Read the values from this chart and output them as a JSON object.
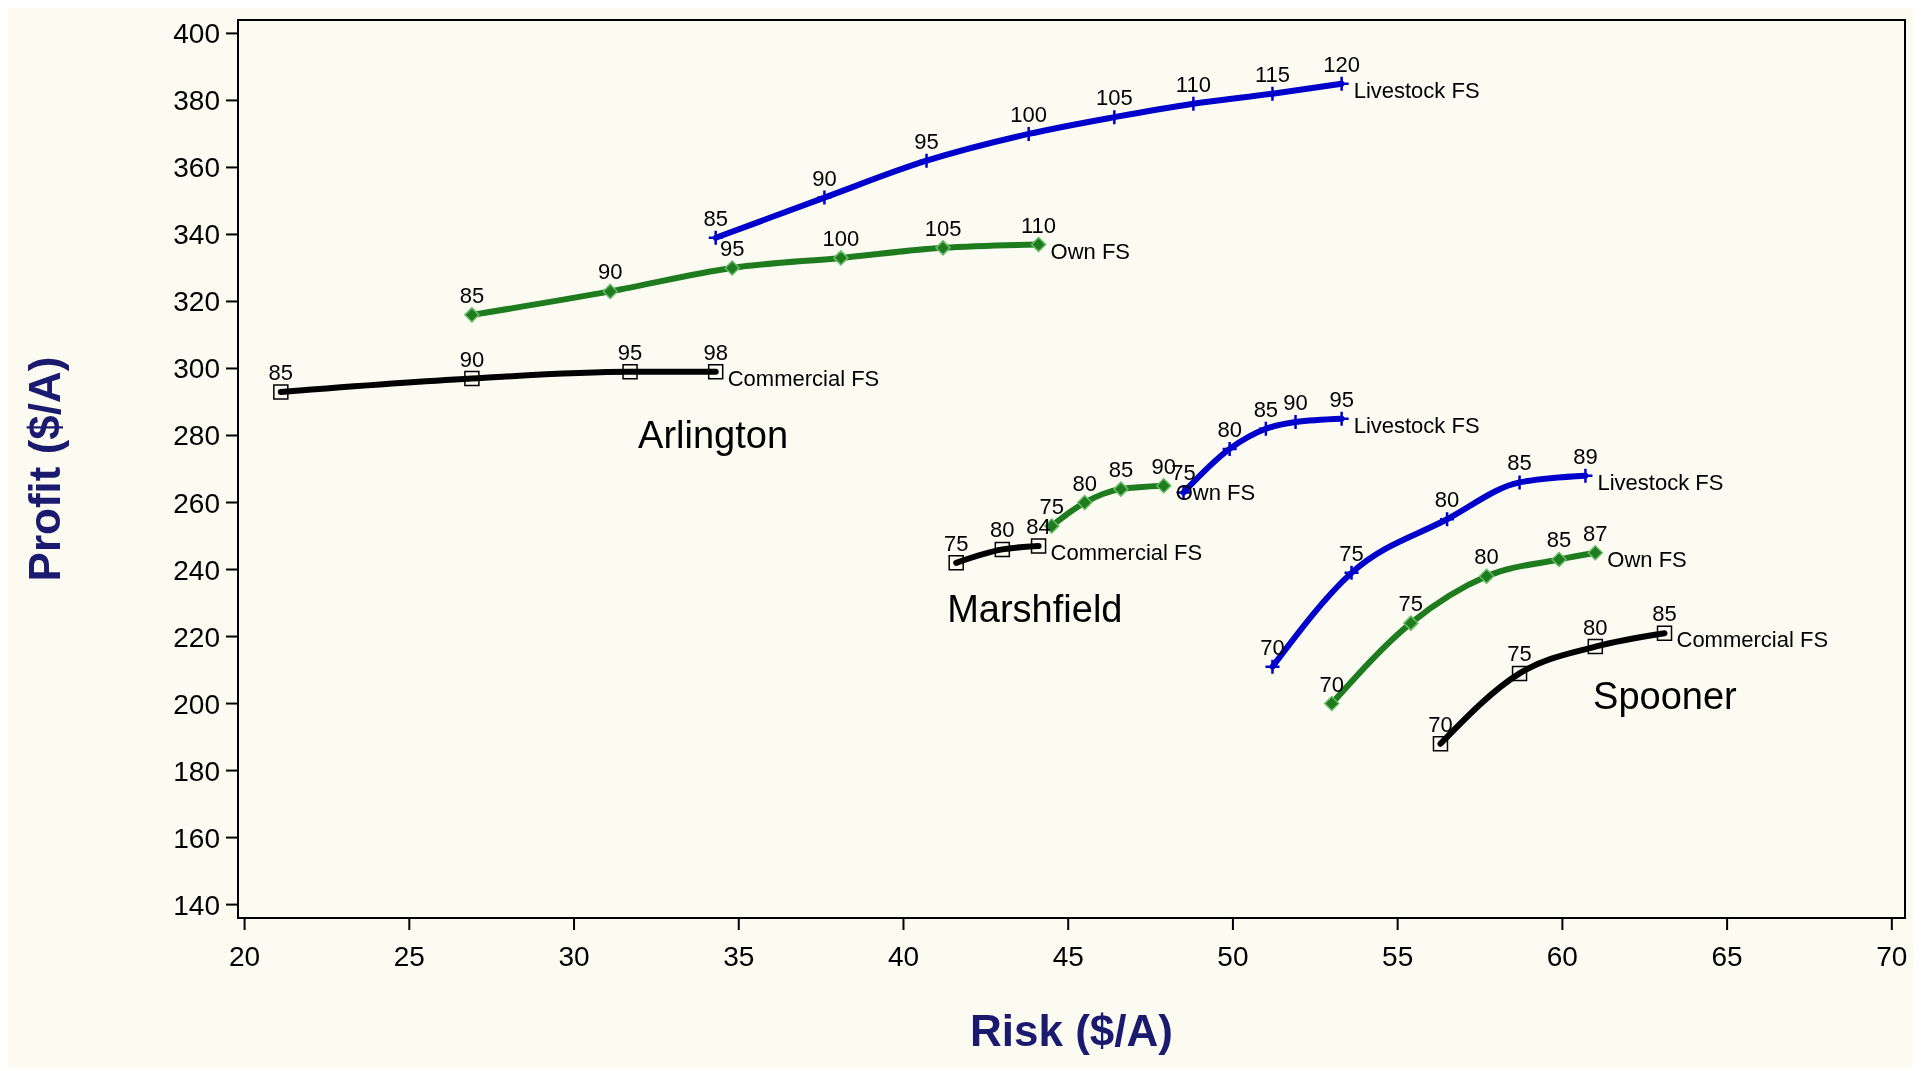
{
  "chart_data": {
    "type": "line",
    "xlabel": "Risk ($/A)",
    "ylabel": "Profit ($/A)",
    "xlim": [
      19.8,
      70.4
    ],
    "ylim": [
      136,
      404
    ],
    "xticks": [
      20,
      25,
      30,
      35,
      40,
      45,
      50,
      55,
      60,
      65,
      70
    ],
    "yticks": [
      140,
      160,
      180,
      200,
      220,
      240,
      260,
      280,
      300,
      320,
      340,
      360,
      380,
      400
    ],
    "line_style": "solid",
    "series": [
      {
        "name": "Livestock FS",
        "color": "#0000cc",
        "marker": "cross",
        "x": [
          34.3,
          37.6,
          40.7,
          43.8,
          46.4,
          48.8,
          51.2,
          53.3
        ],
        "values": [
          339,
          351,
          362,
          370,
          375,
          379,
          382,
          385
        ]
      },
      {
        "name": "Own FS",
        "color": "#1e7b1e",
        "marker": "diamond",
        "x": [
          26.9,
          31.1,
          34.8,
          38.1,
          41.2,
          44.1
        ],
        "values": [
          316,
          323,
          330,
          333,
          336,
          337
        ]
      },
      {
        "name": "Commercial FS",
        "color": "#000000",
        "marker": "square",
        "x": [
          21.1,
          26.9,
          31.7,
          34.3
        ],
        "values": [
          293,
          297,
          299,
          299
        ]
      },
      {
        "name": "Livestock FS",
        "color": "#0000cc",
        "marker": "cross",
        "x": [
          48.5,
          49.9,
          51.0,
          51.9,
          53.3
        ],
        "values": [
          263,
          276,
          282,
          284,
          285
        ]
      },
      {
        "name": "Own FS",
        "color": "#1e7b1e",
        "marker": "diamond",
        "x": [
          44.5,
          45.5,
          46.6,
          47.9
        ],
        "values": [
          253,
          260,
          264,
          265
        ]
      },
      {
        "name": "Commercial FS",
        "color": "#000000",
        "marker": "square",
        "x": [
          41.6,
          43.0,
          44.1
        ],
        "values": [
          242,
          246,
          247
        ]
      },
      {
        "name": "Livestock FS",
        "color": "#0000cc",
        "marker": "cross",
        "x": [
          51.2,
          53.6,
          56.5,
          58.7,
          60.7
        ],
        "values": [
          211,
          239,
          255,
          266,
          268
        ]
      },
      {
        "name": "Own FS",
        "color": "#1e7b1e",
        "marker": "diamond",
        "x": [
          53.0,
          55.4,
          57.7,
          59.9,
          61.0
        ],
        "values": [
          200,
          224,
          238,
          243,
          245
        ]
      },
      {
        "name": "Commercial FS",
        "color": "#000000",
        "marker": "square",
        "x": [
          56.3,
          58.7,
          61.0,
          63.1
        ],
        "values": [
          188,
          209,
          217,
          221
        ]
      }
    ],
    "annotations": [
      "Arlington",
      "Marshfield",
      "Spooner",
      {
        "text": "85",
        "x": 34.3,
        "y": 339
      },
      {
        "text": "90",
        "x": 37.6,
        "y": 351
      },
      {
        "text": "95",
        "x": 40.7,
        "y": 362
      },
      {
        "text": "100",
        "x": 43.8,
        "y": 370
      },
      {
        "text": "105",
        "x": 46.4,
        "y": 375
      },
      {
        "text": "110",
        "x": 48.8,
        "y": 379
      },
      {
        "text": "115",
        "x": 51.2,
        "y": 382
      },
      {
        "text": "120",
        "x": 53.3,
        "y": 385
      },
      {
        "text": "85",
        "x": 26.9,
        "y": 316
      },
      {
        "text": "90",
        "x": 31.1,
        "y": 323
      },
      {
        "text": "95",
        "x": 34.8,
        "y": 330
      },
      {
        "text": "100",
        "x": 38.1,
        "y": 333
      },
      {
        "text": "105",
        "x": 41.2,
        "y": 336
      },
      {
        "text": "110",
        "x": 44.1,
        "y": 337
      },
      {
        "text": "85",
        "x": 21.1,
        "y": 293
      },
      {
        "text": "90",
        "x": 26.9,
        "y": 297
      },
      {
        "text": "95",
        "x": 31.7,
        "y": 299
      },
      {
        "text": "98",
        "x": 34.3,
        "y": 299
      },
      {
        "text": "75",
        "x": 48.5,
        "y": 263
      },
      {
        "text": "80",
        "x": 49.9,
        "y": 276
      },
      {
        "text": "85",
        "x": 51.0,
        "y": 282
      },
      {
        "text": "90",
        "x": 51.9,
        "y": 284
      },
      {
        "text": "95",
        "x": 53.3,
        "y": 285
      },
      {
        "text": "75",
        "x": 44.5,
        "y": 253
      },
      {
        "text": "80",
        "x": 45.5,
        "y": 260
      },
      {
        "text": "85",
        "x": 46.6,
        "y": 264
      },
      {
        "text": "90",
        "x": 47.9,
        "y": 265
      },
      {
        "text": "75",
        "x": 41.6,
        "y": 242
      },
      {
        "text": "80",
        "x": 43.0,
        "y": 246
      },
      {
        "text": "84",
        "x": 44.1,
        "y": 247
      },
      {
        "text": "70",
        "x": 51.2,
        "y": 211
      },
      {
        "text": "75",
        "x": 53.6,
        "y": 239
      },
      {
        "text": "80",
        "x": 56.5,
        "y": 255
      },
      {
        "text": "85",
        "x": 58.7,
        "y": 266
      },
      {
        "text": "89",
        "x": 60.7,
        "y": 268
      },
      {
        "text": "70",
        "x": 53.0,
        "y": 200
      },
      {
        "text": "75",
        "x": 55.4,
        "y": 224
      },
      {
        "text": "80",
        "x": 57.7,
        "y": 238
      },
      {
        "text": "85",
        "x": 59.9,
        "y": 243
      },
      {
        "text": "87",
        "x": 61.0,
        "y": 245
      },
      {
        "text": "70",
        "x": 56.3,
        "y": 188
      },
      {
        "text": "75",
        "x": 58.7,
        "y": 209
      },
      {
        "text": "80",
        "x": 61.0,
        "y": 217
      },
      {
        "text": "85",
        "x": 63.1,
        "y": 221
      }
    ]
  }
}
